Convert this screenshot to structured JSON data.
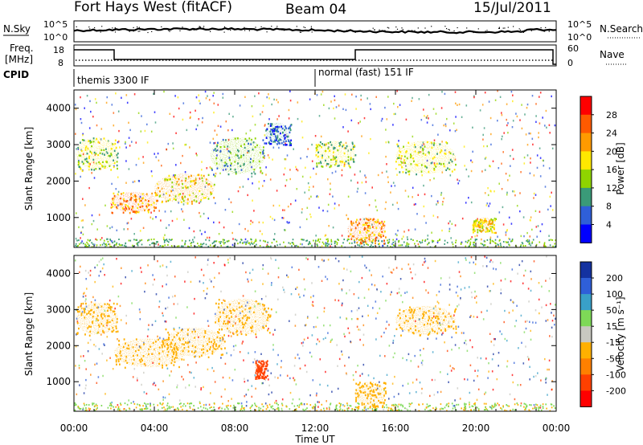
{
  "header": {
    "station": "Fort Hays West (fitACF)",
    "beam": "Beam 04",
    "date": "15/Jul/2011"
  },
  "noise_panel": {
    "left_label": "N.Sky",
    "right_label": "N.Search",
    "left_ticks": [
      "10^5",
      "10^0"
    ],
    "right_ticks": [
      "10^5",
      "10^0"
    ]
  },
  "freq_panel": {
    "left_label_line1": "Freq.",
    "left_label_line2": "[MHz]",
    "right_label": "Nave",
    "left_ticks": [
      "18",
      "8"
    ],
    "right_ticks": [
      "60",
      "0"
    ]
  },
  "cpid_panel": {
    "label": "CPID",
    "modes": [
      {
        "name": "themis 3300 IF",
        "start_hour": 0
      },
      {
        "name": "normal (fast) 151 IF",
        "start_hour": 12
      }
    ]
  },
  "x_axis": {
    "label": "Time UT",
    "ticks": [
      "00:00",
      "04:00",
      "08:00",
      "12:00",
      "16:00",
      "20:00",
      "00:00"
    ],
    "range_hours": [
      0,
      24
    ]
  },
  "chart_data": [
    {
      "type": "heatmap",
      "name": "power",
      "ylabel": "Slant Range [km]",
      "y_ticks": [
        1000,
        2000,
        3000,
        4000
      ],
      "ylim": [
        180,
        4500
      ],
      "colorbar": {
        "label": "Power [dB]",
        "levels": [
          "28",
          "24",
          "20",
          "16",
          "12",
          "8",
          "4"
        ],
        "colors": [
          "#ff0000",
          "#ff5a00",
          "#ff9a00",
          "#ffe800",
          "#8fd400",
          "#3a9a78",
          "#2f5fd8",
          "#0000ff"
        ]
      },
      "regions": [
        {
          "x": [
            0.1,
            2.2
          ],
          "y": [
            2300,
            3200
          ],
          "level": "16"
        },
        {
          "x": [
            1.8,
            4.2
          ],
          "y": [
            1150,
            1700
          ],
          "level": "24"
        },
        {
          "x": [
            4.0,
            7.0
          ],
          "y": [
            1400,
            2200
          ],
          "level": "20"
        },
        {
          "x": [
            6.8,
            9.5
          ],
          "y": [
            2200,
            3200
          ],
          "level": "12"
        },
        {
          "x": [
            9.5,
            10.8
          ],
          "y": [
            3000,
            3600
          ],
          "level": "8"
        },
        {
          "x": [
            12.0,
            14.0
          ],
          "y": [
            2400,
            3100
          ],
          "level": "16"
        },
        {
          "x": [
            13.6,
            15.5
          ],
          "y": [
            300,
            1000
          ],
          "level": "24"
        },
        {
          "x": [
            16.0,
            19.0
          ],
          "y": [
            2200,
            3100
          ],
          "level": "16"
        },
        {
          "x": [
            19.8,
            21.0
          ],
          "y": [
            600,
            1000
          ],
          "level": "20"
        }
      ]
    },
    {
      "type": "heatmap",
      "name": "velocity",
      "ylabel": "Slant Range [km]",
      "y_ticks": [
        1000,
        2000,
        3000,
        4000
      ],
      "ylim": [
        180,
        4500
      ],
      "colorbar": {
        "label": "Velocity [m s⁻¹]",
        "levels": [
          "200",
          "100",
          "50",
          "15",
          "-15",
          "-50",
          "-100",
          "-200"
        ],
        "colors": [
          "#1432a0",
          "#2f5fd8",
          "#39a0c8",
          "#7ed957",
          "#c8c8c0",
          "#ffb000",
          "#ff8000",
          "#ff4000",
          "#ff0000"
        ]
      },
      "regions": [
        {
          "x": [
            0.1,
            2.2
          ],
          "y": [
            2300,
            3200
          ],
          "level": "-15"
        },
        {
          "x": [
            2.0,
            5.5
          ],
          "y": [
            1400,
            2200
          ],
          "level": "-15"
        },
        {
          "x": [
            4.5,
            7.5
          ],
          "y": [
            1700,
            2500
          ],
          "level": "-15"
        },
        {
          "x": [
            7.0,
            9.8
          ],
          "y": [
            2300,
            3300
          ],
          "level": "-15"
        },
        {
          "x": [
            9.0,
            9.6
          ],
          "y": [
            1100,
            1600
          ],
          "level": "-100"
        },
        {
          "x": [
            14.0,
            15.5
          ],
          "y": [
            300,
            1000
          ],
          "level": "-15"
        },
        {
          "x": [
            16.0,
            19.0
          ],
          "y": [
            2300,
            3100
          ],
          "level": "-15"
        }
      ]
    }
  ]
}
